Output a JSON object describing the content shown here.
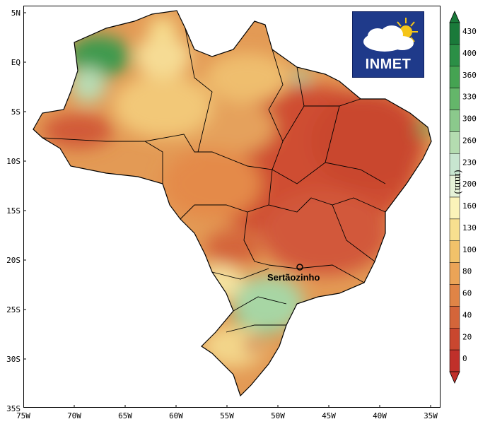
{
  "logo": {
    "text": "INMET",
    "colors": {
      "background": "#1f3a8a",
      "sun": "#f5c518",
      "cloud": "#ffffff"
    }
  },
  "map": {
    "x_ticks": [
      "75W",
      "70W",
      "65W",
      "60W",
      "55W",
      "50W",
      "45W",
      "40W",
      "35W"
    ],
    "y_ticks": [
      "5N",
      "EQ",
      "5S",
      "10S",
      "15S",
      "20S",
      "25S",
      "30S",
      "35S"
    ],
    "marker": {
      "label": "Sertãozinho"
    }
  },
  "legend": {
    "unit": "(mm)",
    "labels": [
      "430",
      "400",
      "360",
      "330",
      "300",
      "260",
      "230",
      "200",
      "160",
      "130",
      "100",
      "80",
      "60",
      "40",
      "20",
      "0"
    ],
    "colors": [
      "#1a7a3a",
      "#2b8f46",
      "#45a352",
      "#64b66a",
      "#8bc98c",
      "#b4dcb0",
      "#c8e6d0",
      "#e6f2d8",
      "#fbf3b9",
      "#f7df8f",
      "#f1c26a",
      "#eba457",
      "#e08446",
      "#d4653a",
      "#c9472f",
      "#c0302a"
    ]
  }
}
